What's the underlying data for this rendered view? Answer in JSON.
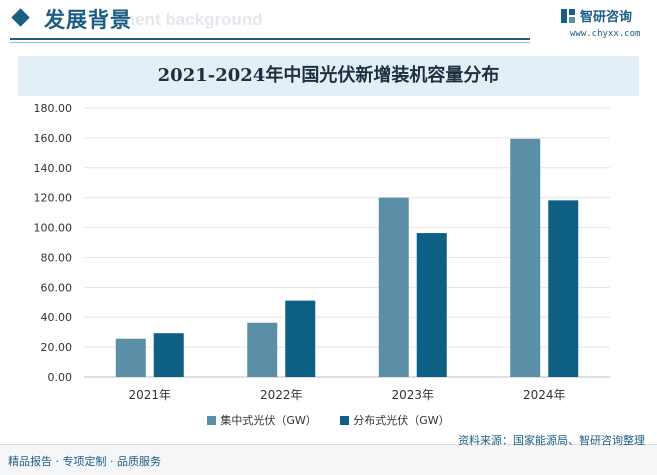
{
  "header": {
    "section_title": "发展背景",
    "section_ghost": "ment background",
    "logo_text": "智研咨询",
    "logo_url": "www.chyxx.com"
  },
  "chart_data": {
    "type": "bar",
    "title": "2021-2024年中国光伏新增装机容量分布",
    "xlabel": "",
    "ylabel": "",
    "categories": [
      "2021年",
      "2022年",
      "2023年",
      "2024年"
    ],
    "ylim": [
      0,
      180
    ],
    "yticks": [
      "0.00",
      "20.00",
      "40.00",
      "60.00",
      "80.00",
      "100.00",
      "120.00",
      "140.00",
      "160.00",
      "180.00"
    ],
    "series": [
      {
        "name": "集中式光伏（GW）",
        "color": "#5b8fa8",
        "values": [
          25.6,
          36.3,
          120.0,
          159.4
        ]
      },
      {
        "name": "分布式光伏（GW）",
        "color": "#0d5f84",
        "values": [
          29.3,
          51.1,
          96.3,
          118.2
        ]
      }
    ],
    "grid": true,
    "legend_position": "bottom"
  },
  "footer": {
    "left": "精品报告 · 专项定制 · 品质服务",
    "source": "资料来源：国家能源局、智研咨询整理"
  }
}
